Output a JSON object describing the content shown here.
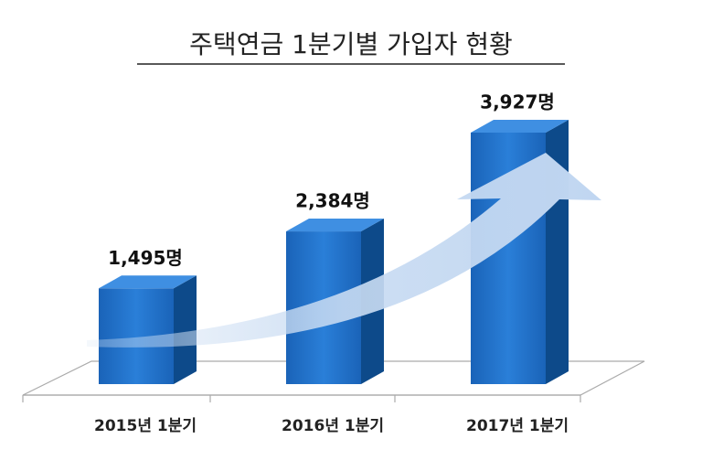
{
  "chart_data": {
    "type": "bar3d",
    "title": "주택연금 1분기별 가입자 현황",
    "categories": [
      "2015년 1분기",
      "2016년 1분기",
      "2017년 1분기"
    ],
    "values": [
      1495,
      2384,
      3927
    ],
    "value_labels": [
      "1,495명",
      "2,384명",
      "3,927명"
    ],
    "color": "#1f6fc7"
  }
}
